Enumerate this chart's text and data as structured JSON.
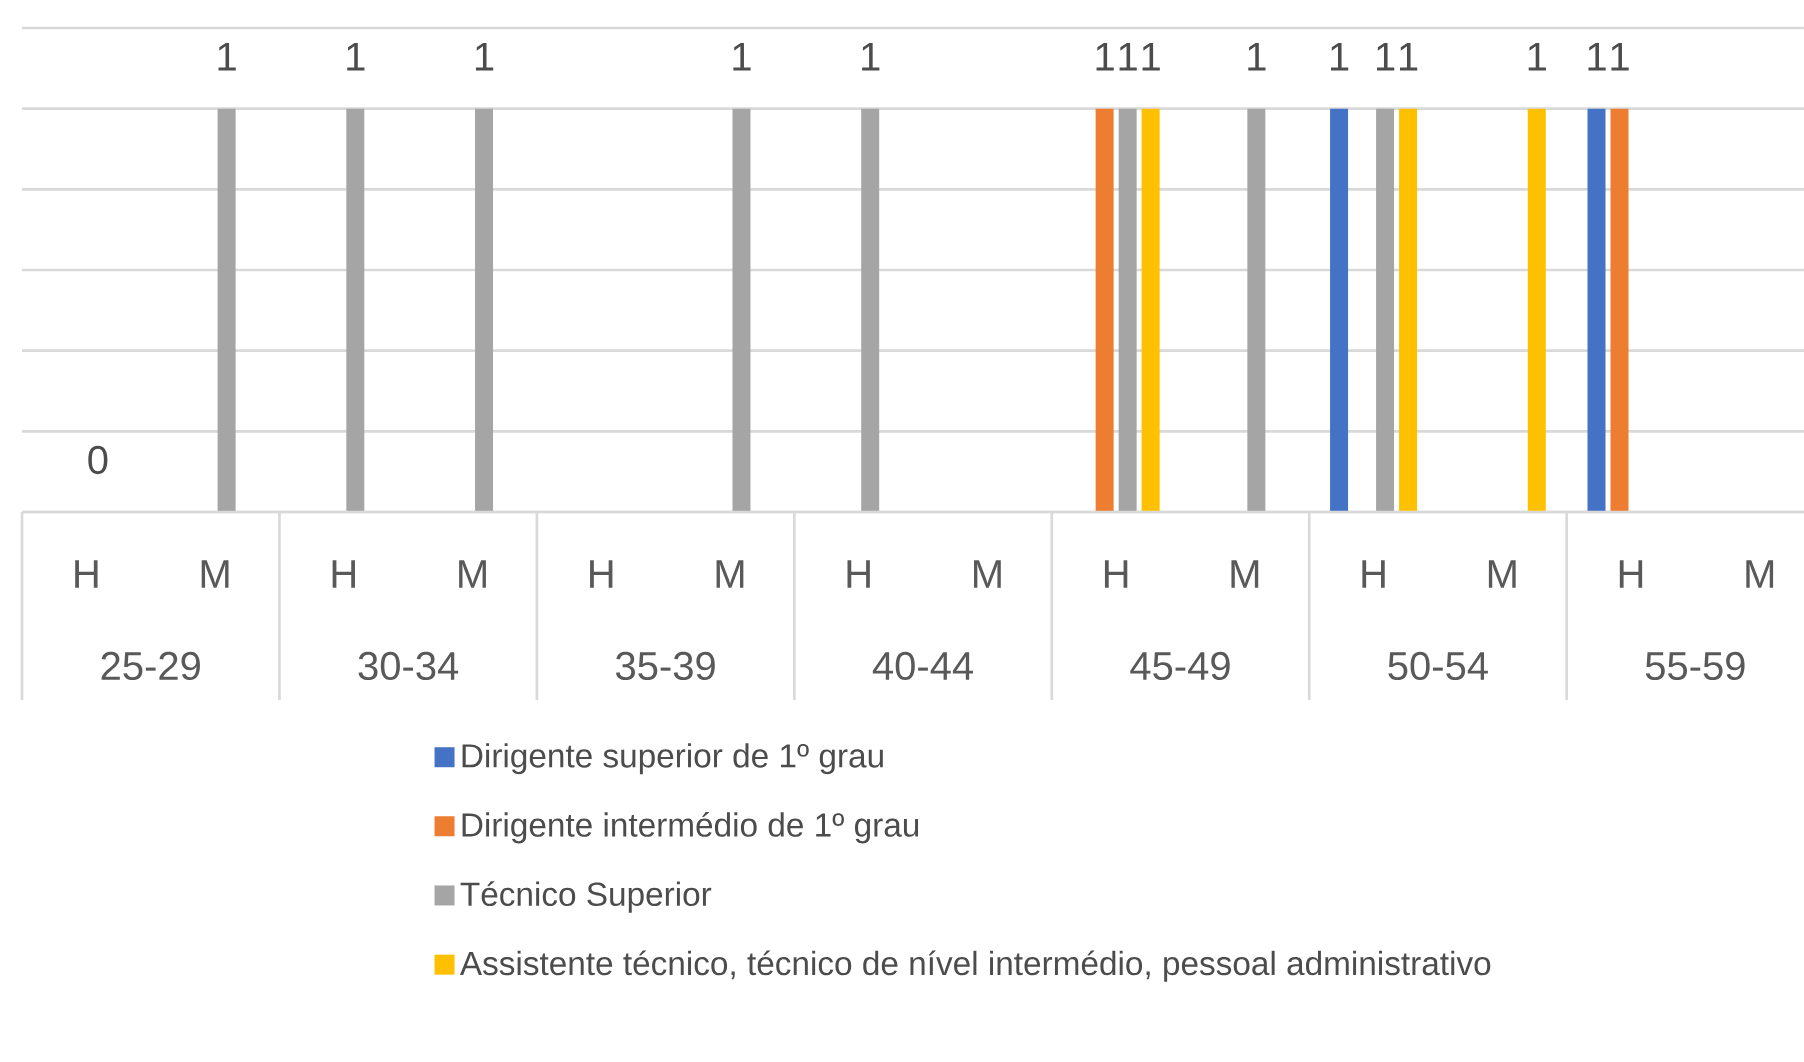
{
  "chart_data": {
    "type": "bar",
    "categories": [
      "H",
      "M",
      "H",
      "M",
      "H",
      "M",
      "H",
      "M",
      "H",
      "M",
      "H",
      "M",
      "H",
      "M"
    ],
    "annotations": [
      "25-29",
      "30-34",
      "35-39",
      "40-44",
      "45-49",
      "50-54",
      "55-59"
    ],
    "series": [
      {
        "name": "Dirigente superior de 1º grau",
        "color": "#4472c4",
        "values": [
          null,
          null,
          null,
          null,
          null,
          null,
          null,
          null,
          null,
          null,
          1,
          null,
          1,
          null
        ]
      },
      {
        "name": "Dirigente intermédio de 1º grau",
        "color": "#ed7d31",
        "values": [
          null,
          null,
          null,
          null,
          null,
          null,
          null,
          null,
          1,
          null,
          null,
          null,
          1,
          null
        ]
      },
      {
        "name": "Técnico Superior",
        "color": "#a5a5a5",
        "values": [
          0,
          1,
          1,
          1,
          null,
          1,
          1,
          null,
          1,
          1,
          1,
          null,
          null,
          null
        ]
      },
      {
        "name": "Assistente técnico, técnico de nível intermédio, pessoal administrativo",
        "color": "#ffc000",
        "values": [
          null,
          null,
          null,
          null,
          null,
          null,
          null,
          null,
          1,
          null,
          1,
          1,
          null,
          null
        ]
      }
    ],
    "ylim": [
      0,
      1.2
    ],
    "yticks": [
      {
        "value": 0,
        "label": null
      },
      {
        "value": 0.2,
        "label": null
      },
      {
        "value": 0.4,
        "label": null
      },
      {
        "value": 0.6,
        "label": null
      },
      {
        "value": 0.8,
        "label": null
      },
      {
        "value": 1,
        "label": null
      },
      {
        "value": 1.2,
        "label": null
      }
    ],
    "tick_labels": "x",
    "grid": "y",
    "data_labels": true,
    "legend": "bottom"
  }
}
